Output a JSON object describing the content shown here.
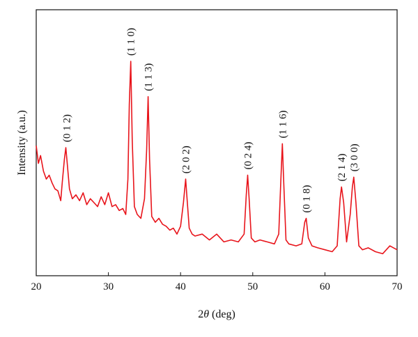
{
  "chart_data": {
    "type": "line",
    "xlabel_prefix": "2",
    "xlabel_symbol": "θ",
    "xlabel_suffix": " (deg)",
    "ylabel": "Intensity (a.u.)",
    "xlim": [
      20,
      70
    ],
    "ylim": [
      0,
      100
    ],
    "x_ticks": [
      20,
      30,
      40,
      50,
      60,
      70
    ],
    "y_ticks_shown": false,
    "grid": false,
    "legend": "none",
    "line_color": "#e8141b",
    "series": [
      {
        "x": [
          20.0,
          20.3,
          20.6,
          21.0,
          21.4,
          21.8,
          22.2,
          22.6,
          23.0,
          23.4,
          23.6,
          23.9,
          24.1,
          24.3,
          24.6,
          25.0,
          25.5,
          26.0,
          26.5,
          27.0,
          27.5,
          28.0,
          28.5,
          29.0,
          29.5,
          30.0,
          30.5,
          31.0,
          31.5,
          32.0,
          32.4,
          32.7,
          32.9,
          33.1,
          33.3,
          33.6,
          34.0,
          34.5,
          35.0,
          35.3,
          35.5,
          35.7,
          36.0,
          36.5,
          37.0,
          37.5,
          38.0,
          38.5,
          39.0,
          39.5,
          40.0,
          40.4,
          40.7,
          40.9,
          41.2,
          41.6,
          42.0,
          43.0,
          44.0,
          45.0,
          46.0,
          47.0,
          48.0,
          48.8,
          49.1,
          49.3,
          49.5,
          49.8,
          50.3,
          51.0,
          52.0,
          53.0,
          53.6,
          53.9,
          54.1,
          54.3,
          54.6,
          55.0,
          56.0,
          56.8,
          57.2,
          57.4,
          57.7,
          58.2,
          59.0,
          60.0,
          61.0,
          61.7,
          62.1,
          62.3,
          62.6,
          63.0,
          63.5,
          63.8,
          64.0,
          64.3,
          64.7,
          65.2,
          66.0,
          67.0,
          68.0,
          69.0,
          69.5,
          70.0
        ],
        "y": [
          57,
          48,
          52,
          44,
          40,
          42,
          38,
          35,
          34,
          29,
          38,
          50,
          56,
          48,
          35,
          30,
          32,
          29,
          33,
          27,
          30,
          28,
          26,
          31,
          27,
          33,
          26,
          27,
          24,
          25,
          22,
          40,
          78,
          100,
          60,
          26,
          22,
          20,
          30,
          55,
          82,
          50,
          21,
          18,
          20,
          17,
          16,
          14,
          15,
          12,
          16,
          28,
          40,
          30,
          15,
          12,
          11,
          12,
          9,
          12,
          8,
          9,
          8,
          12,
          32,
          42,
          30,
          10,
          8,
          9,
          8,
          7,
          12,
          40,
          58,
          38,
          9,
          7,
          6,
          7,
          18,
          20,
          10,
          6,
          5,
          4,
          3,
          6,
          30,
          36,
          28,
          8,
          22,
          36,
          41,
          28,
          6,
          4,
          5,
          3,
          2,
          6,
          5,
          4
        ]
      }
    ],
    "annotations": [
      {
        "x": 24.2,
        "y": 56,
        "text": "(0 1 2)"
      },
      {
        "x": 33.1,
        "y": 100,
        "text": "(1 1 0)"
      },
      {
        "x": 35.5,
        "y": 82,
        "text": "(1 1 3)"
      },
      {
        "x": 40.7,
        "y": 40,
        "text": "(2 0 2)"
      },
      {
        "x": 49.3,
        "y": 42,
        "text": "(0 2 4)"
      },
      {
        "x": 54.1,
        "y": 58,
        "text": "(1 1 6)"
      },
      {
        "x": 57.4,
        "y": 20,
        "text": "(0 1 8)"
      },
      {
        "x": 62.3,
        "y": 36,
        "text": "(2 1 4)"
      },
      {
        "x": 64.0,
        "y": 41,
        "text": "(3 0 0)"
      }
    ]
  }
}
